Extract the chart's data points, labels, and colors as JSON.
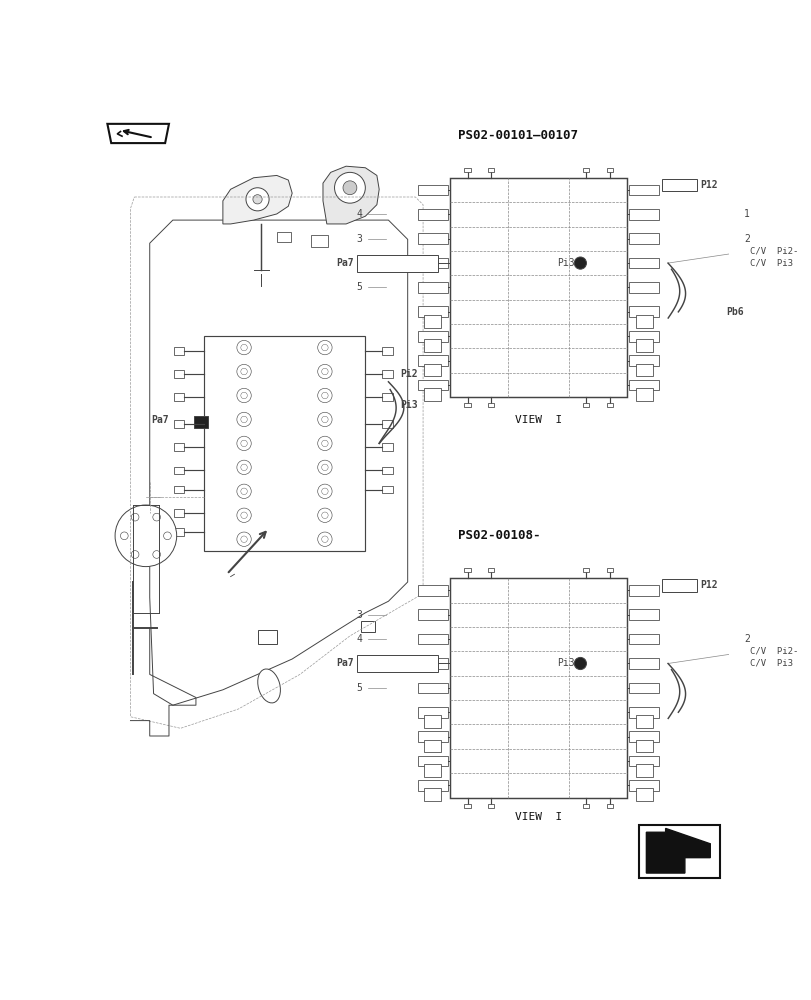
{
  "bg_color": "#ffffff",
  "fig_width": 8.12,
  "fig_height": 10.0,
  "dpi": 100,
  "title_view1": "PS02-00101–00107",
  "title_view2": "PS02-00108-",
  "view_label": "VIEW  I",
  "gray": "#444444",
  "lgray": "#888888",
  "black": "#111111"
}
